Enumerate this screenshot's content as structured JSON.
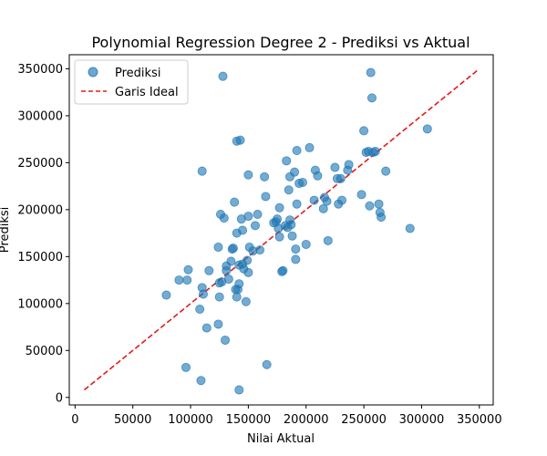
{
  "chart_data": {
    "type": "scatter",
    "title": "Polynomial Regression Degree 2 - Prediksi vs Aktual",
    "xlabel": "Nilai Aktual",
    "ylabel": "Prediksi",
    "xlim": [
      -5000,
      362000
    ],
    "ylim": [
      -8000,
      365000
    ],
    "xticks": [
      0,
      50000,
      100000,
      150000,
      200000,
      250000,
      300000,
      350000
    ],
    "yticks": [
      0,
      50000,
      100000,
      150000,
      200000,
      250000,
      300000,
      350000
    ],
    "grid": false,
    "legend_position": "top-left",
    "series": [
      {
        "name": "Prediksi",
        "kind": "scatter",
        "color": "#1f77b4",
        "points": [
          [
            79000,
            109000
          ],
          [
            90000,
            125000
          ],
          [
            98000,
            136000
          ],
          [
            97000,
            125000
          ],
          [
            96000,
            32000
          ],
          [
            108000,
            94000
          ],
          [
            111000,
            110000
          ],
          [
            110000,
            117000
          ],
          [
            114000,
            74000
          ],
          [
            116000,
            135000
          ],
          [
            109000,
            18000
          ],
          [
            110000,
            241000
          ],
          [
            124000,
            160000
          ],
          [
            124000,
            78000
          ],
          [
            125000,
            107000
          ],
          [
            125000,
            122000
          ],
          [
            126000,
            195000
          ],
          [
            127000,
            123000
          ],
          [
            128000,
            342000
          ],
          [
            129000,
            191000
          ],
          [
            130000,
            61000
          ],
          [
            131000,
            140000
          ],
          [
            133000,
            126000
          ],
          [
            131000,
            135000
          ],
          [
            135000,
            145000
          ],
          [
            136000,
            158000
          ],
          [
            137000,
            159000
          ],
          [
            138000,
            208000
          ],
          [
            139000,
            115000
          ],
          [
            140000,
            175000
          ],
          [
            140000,
            107000
          ],
          [
            140000,
            273000
          ],
          [
            141000,
            115000
          ],
          [
            142000,
            121000
          ],
          [
            142000,
            141000
          ],
          [
            142000,
            8000
          ],
          [
            143000,
            274000
          ],
          [
            144000,
            190000
          ],
          [
            145000,
            142000
          ],
          [
            145000,
            178000
          ],
          [
            146000,
            137000
          ],
          [
            148000,
            102000
          ],
          [
            149000,
            146000
          ],
          [
            150000,
            193000
          ],
          [
            150000,
            237000
          ],
          [
            150000,
            133000
          ],
          [
            151000,
            160000
          ],
          [
            154000,
            156000
          ],
          [
            156000,
            183000
          ],
          [
            158000,
            195000
          ],
          [
            160000,
            157000
          ],
          [
            164000,
            235000
          ],
          [
            165000,
            214000
          ],
          [
            166000,
            35000
          ],
          [
            172000,
            186000
          ],
          [
            174000,
            187000
          ],
          [
            176000,
            180000
          ],
          [
            175000,
            190000
          ],
          [
            177000,
            202000
          ],
          [
            177000,
            171000
          ],
          [
            179000,
            134000
          ],
          [
            180000,
            135000
          ],
          [
            182000,
            183000
          ],
          [
            183000,
            252000
          ],
          [
            184000,
            181000
          ],
          [
            185000,
            221000
          ],
          [
            186000,
            235000
          ],
          [
            186000,
            189000
          ],
          [
            187000,
            184000
          ],
          [
            188000,
            172000
          ],
          [
            190000,
            240000
          ],
          [
            191000,
            158000
          ],
          [
            191000,
            147000
          ],
          [
            192000,
            206000
          ],
          [
            192000,
            263000
          ],
          [
            194000,
            228000
          ],
          [
            197000,
            229000
          ],
          [
            200000,
            163000
          ],
          [
            203000,
            266000
          ],
          [
            207000,
            210000
          ],
          [
            208000,
            242000
          ],
          [
            210000,
            236000
          ],
          [
            215000,
            201000
          ],
          [
            216000,
            213000
          ],
          [
            218000,
            209000
          ],
          [
            219000,
            167000
          ],
          [
            225000,
            245000
          ],
          [
            227000,
            233000
          ],
          [
            228000,
            206000
          ],
          [
            230000,
            233000
          ],
          [
            231000,
            210000
          ],
          [
            236000,
            242000
          ],
          [
            237000,
            248000
          ],
          [
            248000,
            216000
          ],
          [
            250000,
            284000
          ],
          [
            252000,
            261000
          ],
          [
            254000,
            262000
          ],
          [
            255000,
            204000
          ],
          [
            256000,
            346000
          ],
          [
            257000,
            319000
          ],
          [
            258000,
            261000
          ],
          [
            260000,
            262000
          ],
          [
            263000,
            206000
          ],
          [
            264000,
            197000
          ],
          [
            265000,
            192000
          ],
          [
            269000,
            241000
          ],
          [
            290000,
            180000
          ],
          [
            305000,
            286000
          ]
        ]
      },
      {
        "name": "Garis Ideal",
        "kind": "line",
        "style": "dashed",
        "color": "#e31a1c",
        "x": [
          8000,
          348000
        ],
        "y": [
          8000,
          348000
        ]
      }
    ]
  }
}
